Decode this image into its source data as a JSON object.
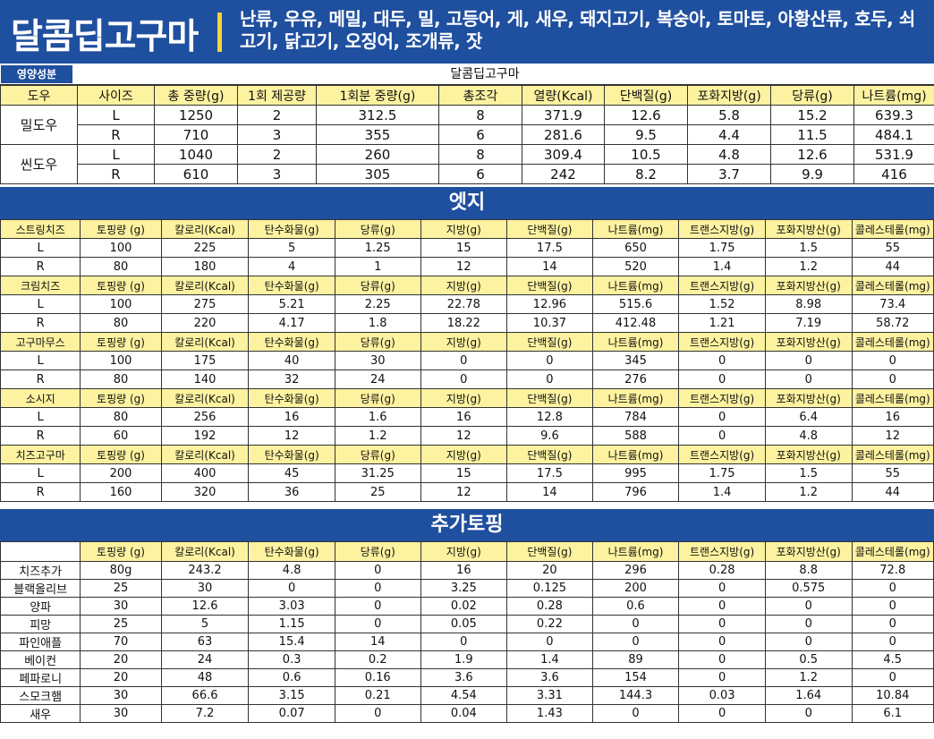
{
  "header": {
    "title": "달콤딥고구마",
    "allergens": "난류, 우유, 메밀, 대두, 밀, 고등어, 게, 새우, 돼지고기, 복숭아, 토마토, 아황산류, 호두, 쇠고기, 닭고기, 오징어, 조개류, 잣"
  },
  "topline": {
    "badge": "영양성분",
    "menu_name": "달콤딥고구마"
  },
  "dough_table": {
    "headers": [
      "도우",
      "사이즈",
      "총 중량(g)",
      "1회 제공량",
      "1회분 중량(g)",
      "총조각",
      "열량(Kcal)",
      "단백질(g)",
      "포화지방(g)",
      "당류(g)",
      "나트륨(mg)"
    ],
    "groups": [
      {
        "name": "밀도우",
        "rows": [
          [
            "L",
            "1250",
            "2",
            "312.5",
            "8",
            "371.9",
            "12.6",
            "5.8",
            "15.2",
            "639.3"
          ],
          [
            "R",
            "710",
            "3",
            "355",
            "6",
            "281.6",
            "9.5",
            "4.4",
            "11.5",
            "484.1"
          ]
        ]
      },
      {
        "name": "씬도우",
        "rows": [
          [
            "L",
            "1040",
            "2",
            "260",
            "8",
            "309.4",
            "10.5",
            "4.8",
            "12.6",
            "531.9"
          ],
          [
            "R",
            "610",
            "3",
            "305",
            "6",
            "242",
            "8.2",
            "3.7",
            "9.9",
            "416"
          ]
        ]
      }
    ]
  },
  "edge_section": {
    "title": "엣지",
    "columns": [
      "토핑량 (g)",
      "칼로리(Kcal)",
      "탄수화물(g)",
      "당류(g)",
      "지방(g)",
      "단백질(g)",
      "나트륨(mg)",
      "트랜스지방(g)",
      "포화지방산(g)",
      "콜레스테롤(mg)"
    ],
    "groups": [
      {
        "name": "스트링치즈",
        "rows": [
          [
            "L",
            "100",
            "225",
            "5",
            "1.25",
            "15",
            "17.5",
            "650",
            "1.75",
            "1.5",
            "55"
          ],
          [
            "R",
            "80",
            "180",
            "4",
            "1",
            "12",
            "14",
            "520",
            "1.4",
            "1.2",
            "44"
          ]
        ]
      },
      {
        "name": "크림치즈",
        "rows": [
          [
            "L",
            "100",
            "275",
            "5.21",
            "2.25",
            "22.78",
            "12.96",
            "515.6",
            "1.52",
            "8.98",
            "73.4"
          ],
          [
            "R",
            "80",
            "220",
            "4.17",
            "1.8",
            "18.22",
            "10.37",
            "412.48",
            "1.21",
            "7.19",
            "58.72"
          ]
        ]
      },
      {
        "name": "고구마무스",
        "rows": [
          [
            "L",
            "100",
            "175",
            "40",
            "30",
            "0",
            "0",
            "345",
            "0",
            "0",
            "0"
          ],
          [
            "R",
            "80",
            "140",
            "32",
            "24",
            "0",
            "0",
            "276",
            "0",
            "0",
            "0"
          ]
        ]
      },
      {
        "name": "소시지",
        "rows": [
          [
            "L",
            "80",
            "256",
            "16",
            "1.6",
            "16",
            "12.8",
            "784",
            "0",
            "6.4",
            "16"
          ],
          [
            "R",
            "60",
            "192",
            "12",
            "1.2",
            "12",
            "9.6",
            "588",
            "0",
            "4.8",
            "12"
          ]
        ]
      },
      {
        "name": "치즈고구마",
        "rows": [
          [
            "L",
            "200",
            "400",
            "45",
            "31.25",
            "15",
            "17.5",
            "995",
            "1.75",
            "1.5",
            "55"
          ],
          [
            "R",
            "160",
            "320",
            "36",
            "25",
            "12",
            "14",
            "796",
            "1.4",
            "1.2",
            "44"
          ]
        ]
      }
    ]
  },
  "topping_section": {
    "title": "추가토핑",
    "columns": [
      "토핑량 (g)",
      "칼로리(Kcal)",
      "탄수화물(g)",
      "당류(g)",
      "지방(g)",
      "단백질(g)",
      "나트륨(mg)",
      "트랜스지방(g)",
      "포화지방산(g)",
      "콜레스테롤(mg)"
    ],
    "rows": [
      [
        "치즈추가",
        "80g",
        "243.2",
        "4.8",
        "0",
        "16",
        "20",
        "296",
        "0.28",
        "8.8",
        "72.8"
      ],
      [
        "블랙올리브",
        "25",
        "30",
        "0",
        "0",
        "3.25",
        "0.125",
        "200",
        "0",
        "0.575",
        "0"
      ],
      [
        "양파",
        "30",
        "12.6",
        "3.03",
        "0",
        "0.02",
        "0.28",
        "0.6",
        "0",
        "0",
        "0"
      ],
      [
        "피망",
        "25",
        "5",
        "1.15",
        "0",
        "0.05",
        "0.22",
        "0",
        "0",
        "0",
        "0"
      ],
      [
        "파인애플",
        "70",
        "63",
        "15.4",
        "14",
        "0",
        "0",
        "0",
        "0",
        "0",
        "0"
      ],
      [
        "베이컨",
        "20",
        "24",
        "0.3",
        "0.2",
        "1.9",
        "1.4",
        "89",
        "0",
        "0.5",
        "4.5"
      ],
      [
        "페파로니",
        "20",
        "48",
        "0.6",
        "0.16",
        "3.6",
        "3.6",
        "154",
        "0",
        "1.2",
        "0"
      ],
      [
        "스모크햄",
        "30",
        "66.6",
        "3.15",
        "0.21",
        "4.54",
        "3.31",
        "144.3",
        "0.03",
        "1.64",
        "10.84"
      ],
      [
        "새우",
        "30",
        "7.2",
        "0.07",
        "0",
        "0.04",
        "1.43",
        "0",
        "0",
        "0",
        "6.1"
      ]
    ]
  }
}
